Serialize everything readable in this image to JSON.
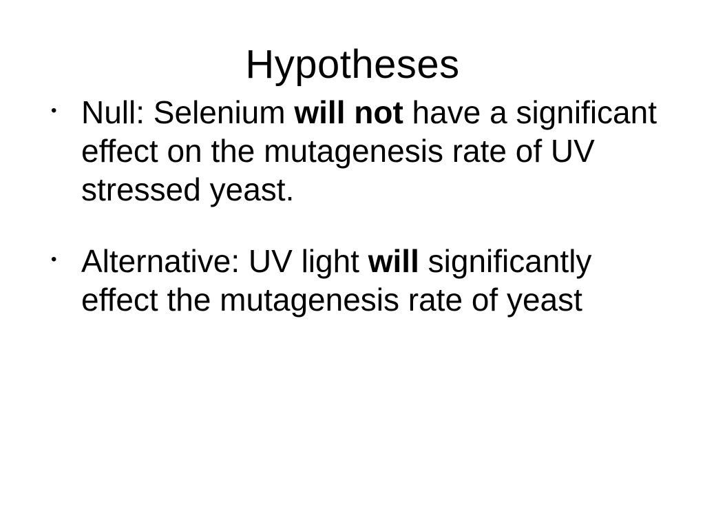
{
  "slide": {
    "title": "Hypotheses",
    "title_fontsize": 58,
    "body_fontsize": 46,
    "background_color": "#ffffff",
    "text_color": "#000000",
    "bullets": [
      {
        "segments": [
          {
            "text": "Null: Selenium ",
            "bold": false
          },
          {
            "text": "will not",
            "bold": true
          },
          {
            "text": " have a significant effect on the mutagenesis rate of UV stressed yeast.",
            "bold": false
          }
        ]
      },
      {
        "segments": [
          {
            "text": "Alternative: UV light ",
            "bold": false
          },
          {
            "text": "will",
            "bold": true
          },
          {
            "text": " significantly effect the mutagenesis rate of yeast",
            "bold": false
          }
        ]
      }
    ]
  }
}
